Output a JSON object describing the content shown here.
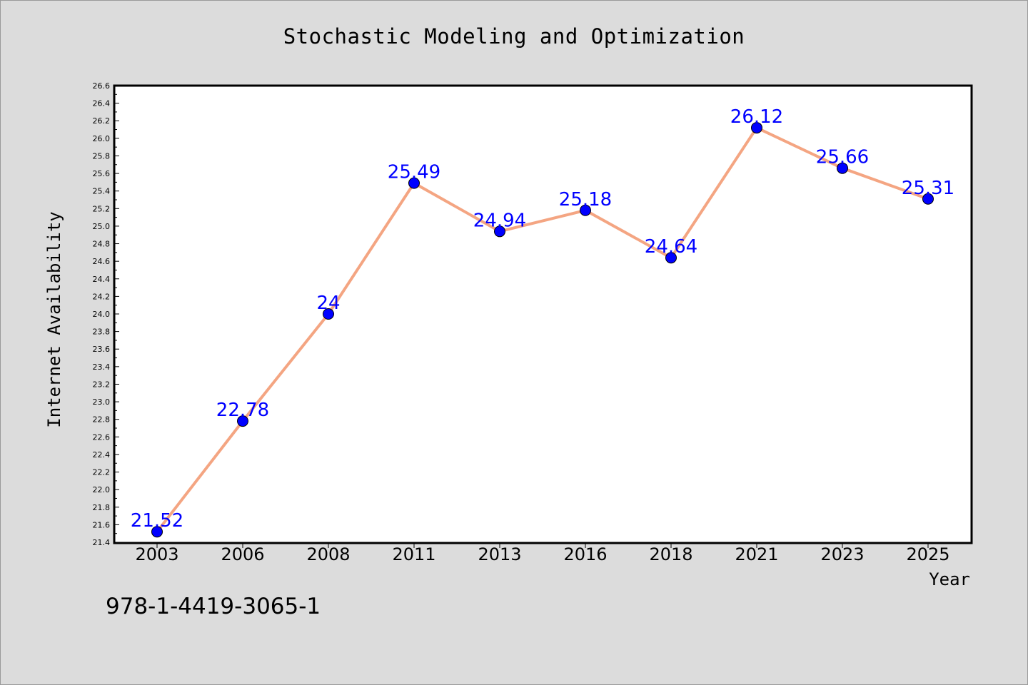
{
  "chart_data": {
    "type": "line",
    "title": "Stochastic Modeling and Optimization",
    "xlabel": "Year",
    "ylabel": "Internet Availability",
    "categories": [
      "2003",
      "2006",
      "2008",
      "2011",
      "2013",
      "2016",
      "2018",
      "2021",
      "2023",
      "2025"
    ],
    "values": [
      21.52,
      22.78,
      24,
      25.49,
      24.94,
      25.18,
      24.64,
      26.12,
      25.66,
      25.31
    ],
    "data_labels": [
      "21.52",
      "22.78",
      "24",
      "25.49",
      "24.94",
      "25.18",
      "24.64",
      "26.12",
      "25.66",
      "25.31"
    ],
    "ylim": [
      21.4,
      26.6
    ],
    "ytick_step": 0.2,
    "grid": false,
    "line_color": "#f4a582",
    "marker_color": "#0000ff",
    "label_color": "#0000ff"
  },
  "footer": {
    "isbn": "978-1-4419-3065-1"
  }
}
